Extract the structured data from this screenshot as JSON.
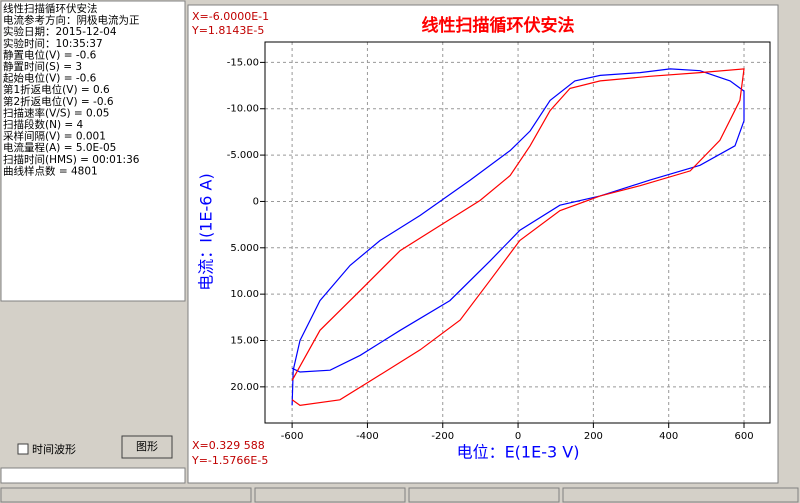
{
  "info_lines": [
    "线性扫描循环伏安法",
    "电流参考方向：阴极电流为正",
    "实验日期：2015-12-04",
    "实验时间：10:35:37",
    "静置电位(V) = -0.6",
    "静置时间(S) = 3",
    "起始电位(V) = -0.6",
    "第1折返电位(V) = 0.6",
    "第2折返电位(V) = -0.6",
    "扫描速率(V/S) = 0.05",
    "扫描段数(N) = 4",
    "采样间隔(V) = 0.001",
    "电流量程(A) = 5.0E-05",
    "扫描时间(HMS) = 00:01:36",
    "曲线样点数 = 4801"
  ],
  "checkbox_label": "时间波形",
  "button_label": "图形",
  "cursor_top": {
    "x": "X=-6.0000E-1",
    "y": "Y=1.8143E-5"
  },
  "cursor_bottom": {
    "x": "X=0.329 588",
    "y": "Y=-1.5766E-5"
  },
  "chart_data": {
    "type": "line",
    "title": "线性扫描循环伏安法",
    "xlabel": "电位：E(1E-3 V)",
    "ylabel": "电流：I(1E-6 A)",
    "xlim": [
      -672,
      669
    ],
    "ylim": [
      -17.2,
      23.9
    ],
    "y_inverted": true,
    "grid": true,
    "xticks": [
      -600,
      -400,
      -200,
      0,
      200,
      400,
      600
    ],
    "yticks": [
      {
        "value": -15,
        "label": "-15.00"
      },
      {
        "value": -10,
        "label": "-10.00"
      },
      {
        "value": -5,
        "label": "-5.000"
      },
      0,
      {
        "value": 5,
        "label": "5.000"
      },
      {
        "value": 10,
        "label": "10.00"
      },
      {
        "value": 15,
        "label": "15.00"
      },
      {
        "value": 20,
        "label": "20.00"
      }
    ],
    "series": [
      {
        "color": "#0000ff",
        "x": [
          -600,
          -597,
          -579,
          -526,
          -446,
          -366,
          -260,
          -127,
          -21,
          32,
          85,
          151,
          218,
          324,
          404,
          483,
          563,
          600,
          600,
          576,
          483,
          350,
          218,
          111,
          5,
          -74,
          -181,
          -313,
          -419,
          -499,
          -579,
          -600
        ],
        "values": [
          22.0,
          18.2,
          15.0,
          10.7,
          6.9,
          4.2,
          1.5,
          -2.3,
          -5.5,
          -7.6,
          -10.9,
          -13.0,
          -13.6,
          -13.9,
          -14.3,
          -14.1,
          -13.0,
          -11.9,
          -8.7,
          -6.0,
          -3.9,
          -2.3,
          -0.6,
          0.4,
          3.1,
          6.4,
          10.7,
          13.9,
          16.6,
          18.2,
          18.4,
          18.0
        ]
      },
      {
        "color": "#ff0000",
        "x": [
          -600,
          -526,
          -419,
          -313,
          -207,
          -101,
          -21,
          32,
          85,
          138,
          218,
          350,
          483,
          600,
          589,
          536,
          457,
          324,
          218,
          111,
          5,
          -74,
          -154,
          -260,
          -366,
          -473,
          -579,
          -600
        ],
        "values": [
          19.3,
          13.9,
          9.6,
          5.3,
          2.6,
          -0.1,
          -2.8,
          -6.0,
          -9.8,
          -12.2,
          -13.0,
          -13.5,
          -13.9,
          -14.3,
          -10.9,
          -6.6,
          -3.3,
          -1.7,
          -0.6,
          1.0,
          4.2,
          8.5,
          12.8,
          16.0,
          18.7,
          21.4,
          22.0,
          21.4
        ]
      }
    ]
  }
}
